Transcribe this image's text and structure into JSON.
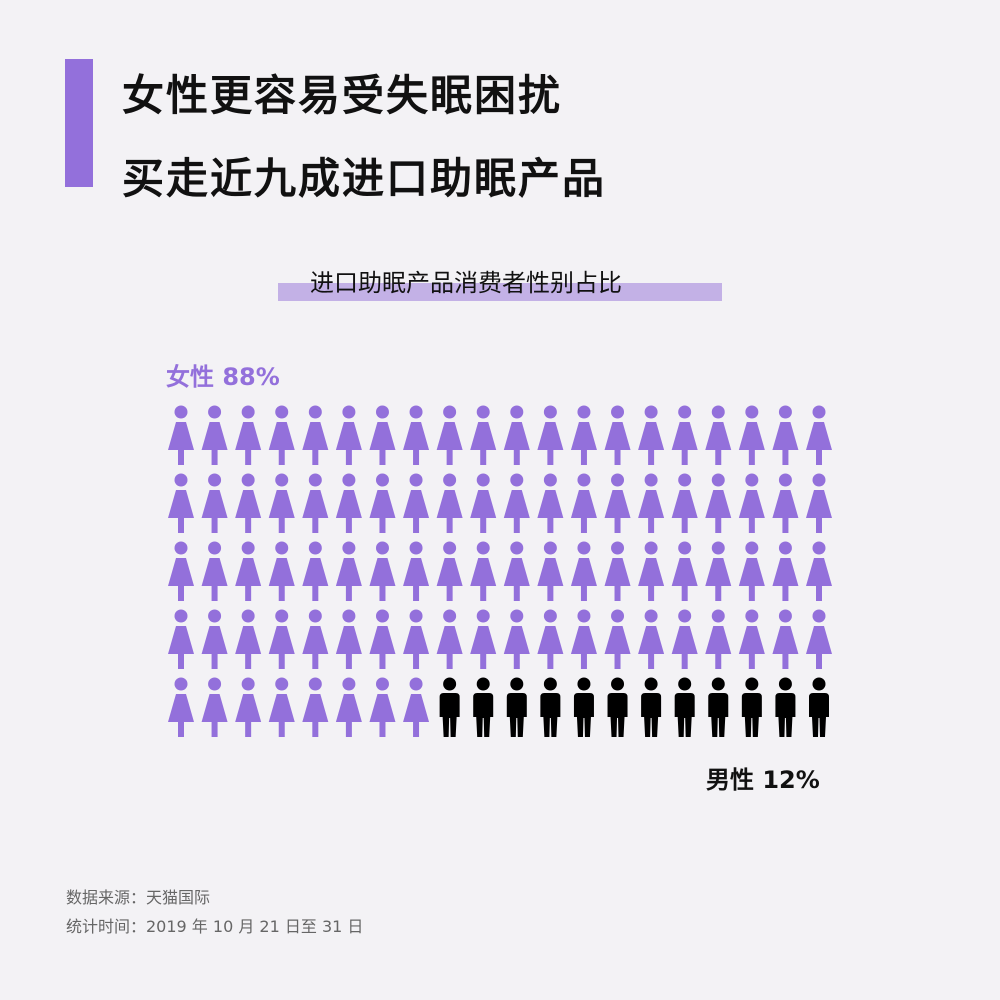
{
  "header": {
    "title_line1": "女性更容易受失眠困扰",
    "title_line2": "买走近九成进口助眠产品",
    "accent_color": "#9370db"
  },
  "chart_data": {
    "type": "pictogram",
    "title": "进口助眠产品消费者性别占比",
    "categories": [
      "女性",
      "男性"
    ],
    "values": [
      88,
      12
    ],
    "unit": "%",
    "labels": [
      "女性 88%",
      "男性 12%"
    ],
    "colors": [
      "#9370db",
      "#000000"
    ],
    "icons": [
      "female-figure",
      "male-figure"
    ],
    "grid": {
      "columns": 20,
      "rows": 5
    }
  },
  "footer": {
    "source": "数据来源：天猫国际",
    "period": "统计时间：2019 年 10 月 21 日至 31 日"
  }
}
